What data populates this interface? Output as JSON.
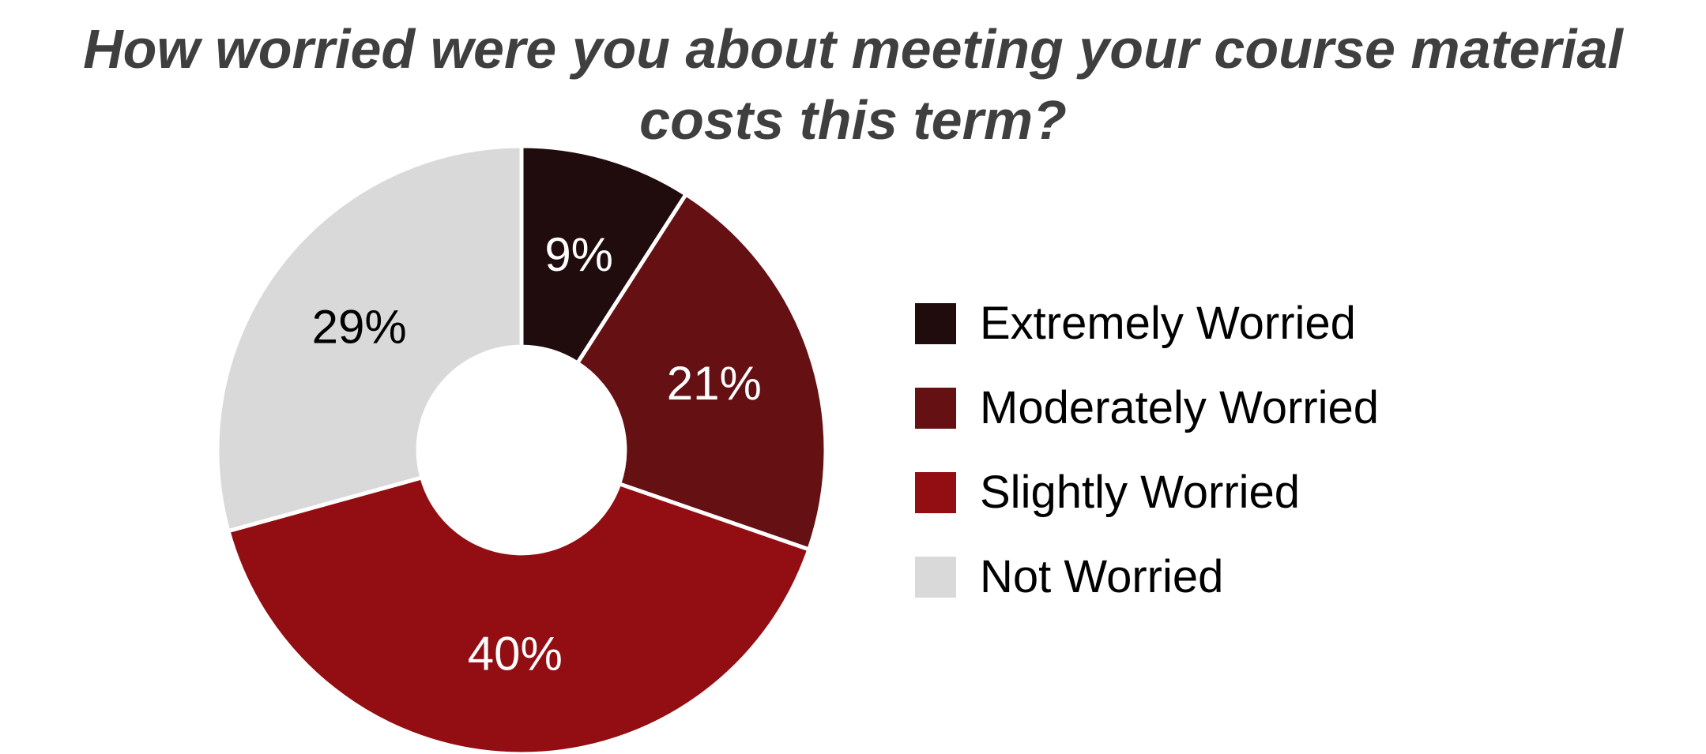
{
  "chart_data": {
    "type": "pie",
    "subtype": "donut",
    "title": "How worried were you about meeting your course material costs this term?",
    "title_color": "#3f3f3f",
    "categories": [
      "Extremely Worried",
      "Moderately Worried",
      "Slightly Worried",
      "Not Worried"
    ],
    "values": [
      9,
      21,
      40,
      29
    ],
    "labels": [
      "9%",
      "21%",
      "40%",
      "29%"
    ],
    "colors": [
      "#200c0c",
      "#651013",
      "#930e12",
      "#d9d9d9"
    ],
    "label_colors": [
      "#ffffff",
      "#ffffff",
      "#ffffff",
      "#000000"
    ],
    "start_angle_deg": 0,
    "direction": "clockwise",
    "inner_radius_ratio": 0.34,
    "slice_border_color": "#ffffff",
    "legend_position": "right",
    "grid": "off",
    "background": "#ffffff"
  }
}
